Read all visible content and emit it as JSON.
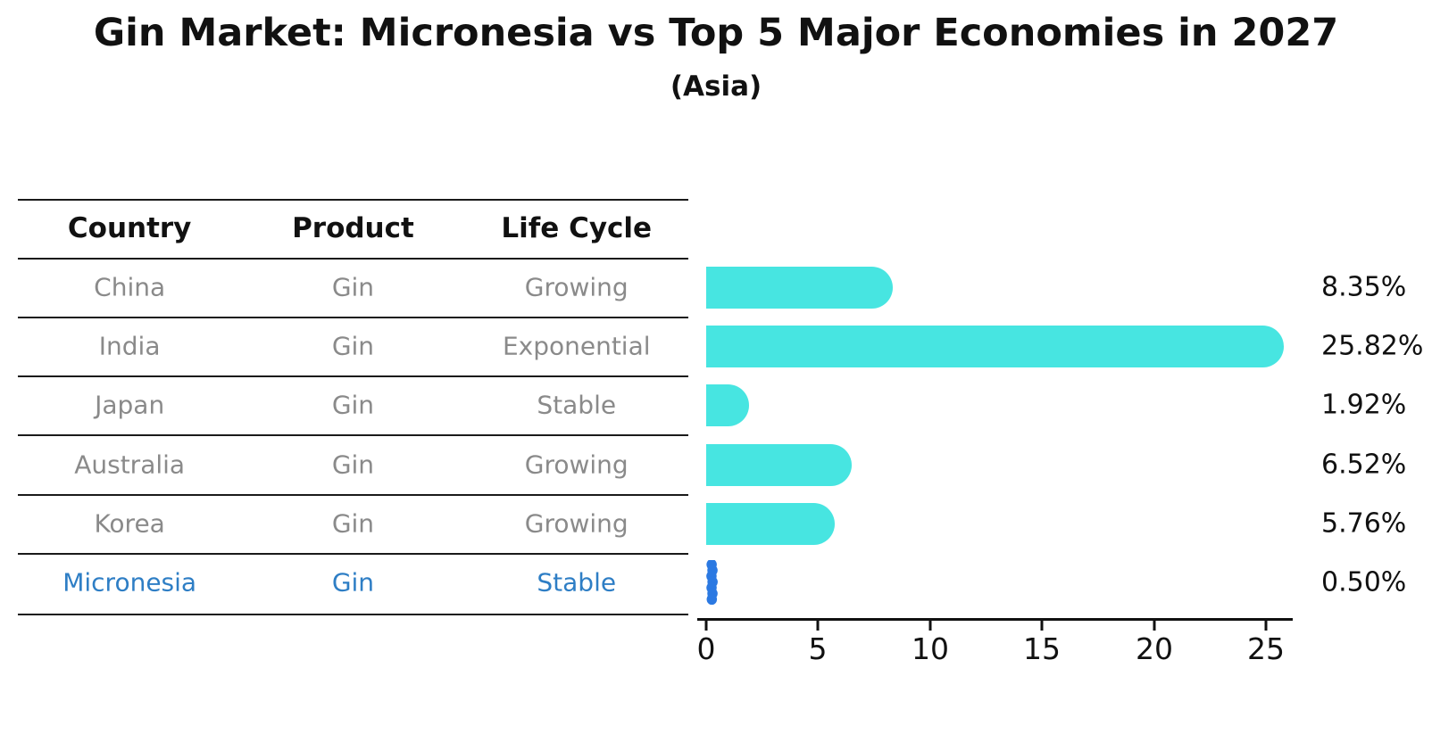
{
  "title": "Gin Market: Micronesia vs Top 5 Major Economies in 2027",
  "subtitle": "(Asia)",
  "table": {
    "headers": [
      "Country",
      "Product",
      "Life Cycle"
    ],
    "rows": [
      {
        "country": "China",
        "product": "Gin",
        "life_cycle": "Growing"
      },
      {
        "country": "India",
        "product": "Gin",
        "life_cycle": "Exponential"
      },
      {
        "country": "Japan",
        "product": "Gin",
        "life_cycle": "Stable"
      },
      {
        "country": "Australia",
        "product": "Gin",
        "life_cycle": "Growing"
      },
      {
        "country": "Korea",
        "product": "Gin",
        "life_cycle": "Growing"
      },
      {
        "country": "Micronesia",
        "product": "Gin",
        "life_cycle": "Stable"
      }
    ],
    "highlighted_row": "Micronesia"
  },
  "chart_data": {
    "type": "bar",
    "orientation": "horizontal",
    "categories": [
      "China",
      "India",
      "Japan",
      "Australia",
      "Korea",
      "Micronesia"
    ],
    "values": [
      8.35,
      25.82,
      1.92,
      6.52,
      5.76,
      0.5
    ],
    "value_labels": [
      "8.35%",
      "25.82%",
      "1.92%",
      "6.52%",
      "5.76%",
      "0.50%"
    ],
    "value_suffix": "%",
    "title": "Gin Market: Micronesia vs Top 5 Major Economies in 2027",
    "subtitle": "(Asia)",
    "xlabel": "",
    "ylabel": "",
    "xlim": [
      0,
      26.6
    ],
    "x_ticks": [
      0,
      5,
      10,
      15,
      20,
      25
    ],
    "x_tick_labels": [
      "0",
      "5",
      "10",
      "15",
      "20",
      "25"
    ],
    "grid": false,
    "legend": false,
    "highlight_index": 5,
    "bar_color": "#47E5E1",
    "highlight_bar_color": "#2B79E2",
    "highlight_text_color": "#2E7EC5"
  }
}
